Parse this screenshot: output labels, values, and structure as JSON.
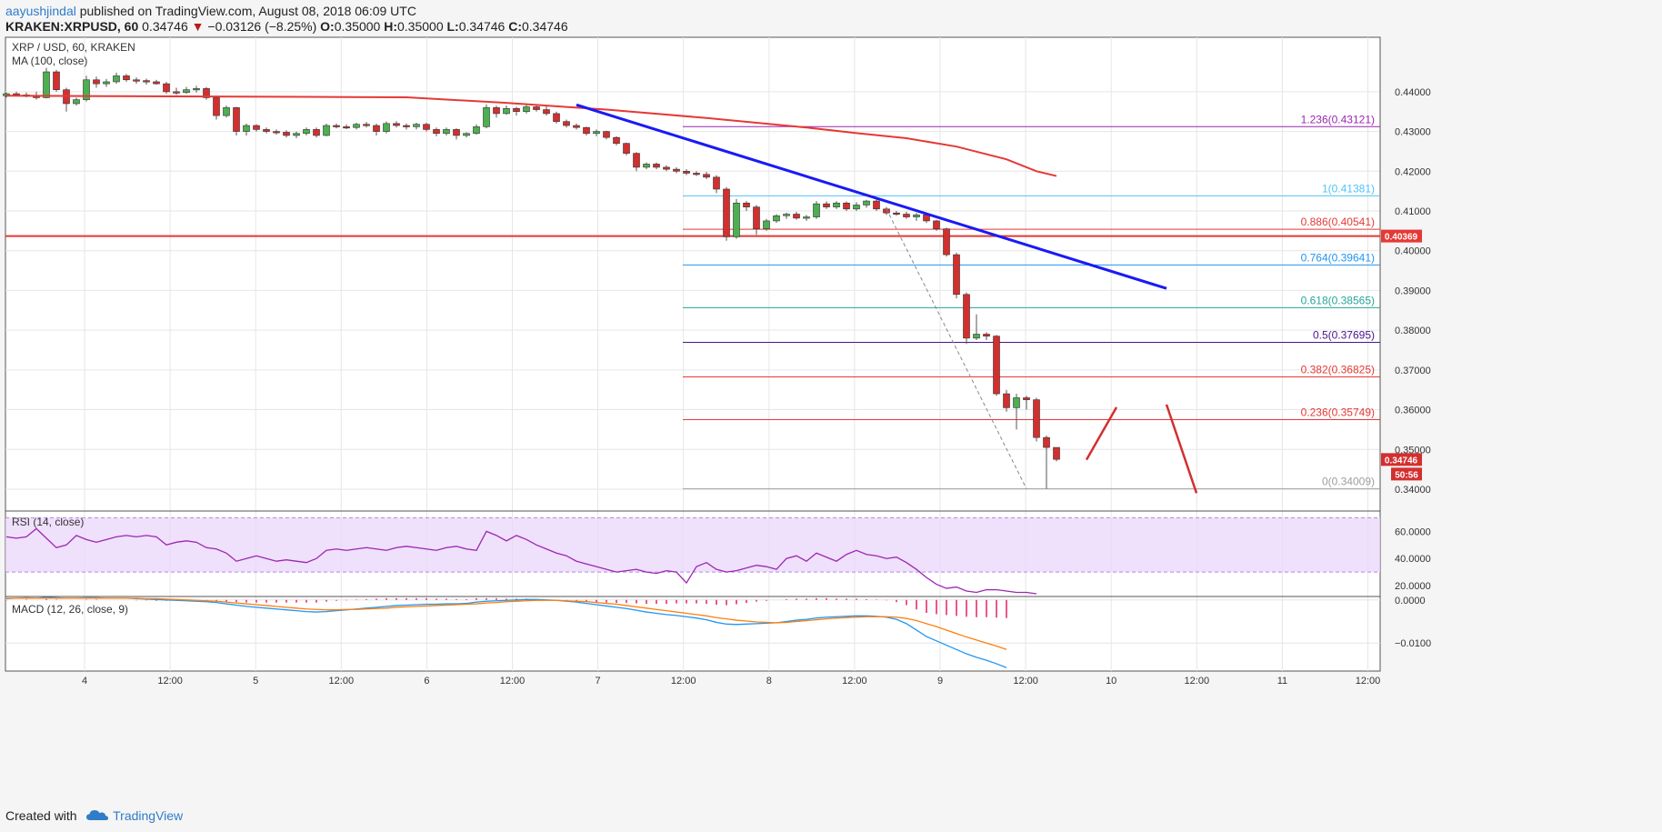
{
  "header": {
    "author": "aayushjindal",
    "published": " published on TradingView.com, August 08, 2018 06:09 UTC",
    "symbol": "KRAKEN:XRPUSD, 60",
    "last": "0.34746",
    "arrow": "▼",
    "change": "−0.03126 (−8.25%)",
    "o_label": "O:",
    "o": "0.35000",
    "h_label": "H:",
    "h": "0.35000",
    "l_label": "L:",
    "l": "0.34746",
    "c_label": "C:",
    "c": "0.34746"
  },
  "footer": {
    "created_with": "Created with",
    "brand": "TradingView"
  },
  "colors": {
    "up": "#4caf50",
    "down": "#d32f2f",
    "ma": "#e53935",
    "trendline": "#1a1af5",
    "hline": "#e53935",
    "rsi": "#9c27b0",
    "rsi_band": "#ead5fb",
    "macd": "#2196f3",
    "signal": "#ff7f0e",
    "hist": "#e91e63"
  },
  "chart_data": [
    {
      "type": "candlestick",
      "title": "XRP / USD, 60, KRAKEN",
      "indicator_label": "MA (100, close)",
      "y_ticks": [
        0.34,
        0.35,
        0.36,
        0.37,
        0.38,
        0.39,
        0.4,
        0.41,
        0.42,
        0.43,
        0.44
      ],
      "y_tick_labels": [
        "0.34000",
        "0.35000",
        "0.36000",
        "0.37000",
        "0.38000",
        "0.39000",
        "0.40000",
        "0.41000",
        "0.42000",
        "0.43000",
        "0.44000"
      ],
      "ylim": [
        0.3345,
        0.4537
      ],
      "x_tick_labels": [
        "4",
        "12:00",
        "5",
        "12:00",
        "6",
        "12:00",
        "7",
        "12:00",
        "8",
        "12:00",
        "9",
        "12:00",
        "10",
        "12:00",
        "11",
        "12:00"
      ],
      "last_price_label": "0.34746",
      "countdown_label": "50:56",
      "horizontal_line": {
        "value": 0.40369,
        "label": "0.40369"
      },
      "fibonacci": [
        {
          "ratio": "1.236",
          "value": 0.43121,
          "label": "1.236(0.43121)",
          "color": "#9c27b0"
        },
        {
          "ratio": "1",
          "value": 0.41381,
          "label": "1(0.41381)",
          "color": "#4fc3f7"
        },
        {
          "ratio": "0.886",
          "value": 0.40541,
          "label": "0.886(0.40541)",
          "color": "#e53935"
        },
        {
          "ratio": "0.764",
          "value": 0.39641,
          "label": "0.764(0.39641)",
          "color": "#2196f3"
        },
        {
          "ratio": "0.618",
          "value": 0.38565,
          "label": "0.618(0.38565)",
          "color": "#26a69a"
        },
        {
          "ratio": "0.5",
          "value": 0.37695,
          "label": "0.5(0.37695)",
          "color": "#4a148c"
        },
        {
          "ratio": "0.382",
          "value": 0.36825,
          "label": "0.382(0.36825)",
          "color": "#e53935"
        },
        {
          "ratio": "0.236",
          "value": 0.35749,
          "label": "0.236(0.35749)",
          "color": "#e53935"
        },
        {
          "ratio": "0",
          "value": 0.34009,
          "label": "0(0.34009)",
          "color": "#9e9e9e"
        }
      ],
      "candles": [
        [
          0.439,
          0.4398,
          0.4385,
          0.4395
        ],
        [
          0.4395,
          0.44,
          0.4388,
          0.4392
        ],
        [
          0.4392,
          0.4398,
          0.4386,
          0.439
        ],
        [
          0.439,
          0.44,
          0.438,
          0.4385
        ],
        [
          0.4385,
          0.446,
          0.4383,
          0.445
        ],
        [
          0.445,
          0.4455,
          0.44,
          0.4405
        ],
        [
          0.4405,
          0.441,
          0.435,
          0.437
        ],
        [
          0.437,
          0.4385,
          0.4365,
          0.438
        ],
        [
          0.438,
          0.444,
          0.4375,
          0.443
        ],
        [
          0.443,
          0.4438,
          0.441,
          0.442
        ],
        [
          0.442,
          0.4432,
          0.4412,
          0.4425
        ],
        [
          0.4425,
          0.4448,
          0.442,
          0.444
        ],
        [
          0.444,
          0.4445,
          0.4425,
          0.443
        ],
        [
          0.443,
          0.4436,
          0.442,
          0.4428
        ],
        [
          0.4428,
          0.4433,
          0.4418,
          0.4425
        ],
        [
          0.4425,
          0.443,
          0.4418,
          0.442
        ],
        [
          0.442,
          0.4425,
          0.4395,
          0.44
        ],
        [
          0.44,
          0.441,
          0.4392,
          0.4398
        ],
        [
          0.4398,
          0.4412,
          0.4395,
          0.4405
        ],
        [
          0.4405,
          0.4415,
          0.4398,
          0.4408
        ],
        [
          0.4408,
          0.4412,
          0.438,
          0.4385
        ],
        [
          0.4385,
          0.439,
          0.433,
          0.434
        ],
        [
          0.434,
          0.4365,
          0.4335,
          0.436
        ],
        [
          0.436,
          0.4362,
          0.429,
          0.43
        ],
        [
          0.43,
          0.432,
          0.429,
          0.4315
        ],
        [
          0.4315,
          0.4318,
          0.43,
          0.4305
        ],
        [
          0.4305,
          0.431,
          0.4295,
          0.43
        ],
        [
          0.43,
          0.4305,
          0.4292,
          0.4298
        ],
        [
          0.4298,
          0.4303,
          0.4285,
          0.429
        ],
        [
          0.429,
          0.43,
          0.4283,
          0.4295
        ],
        [
          0.4295,
          0.431,
          0.429,
          0.4305
        ],
        [
          0.4305,
          0.431,
          0.4285,
          0.429
        ],
        [
          0.429,
          0.432,
          0.4288,
          0.4315
        ],
        [
          0.4315,
          0.432,
          0.4308,
          0.4312
        ],
        [
          0.4312,
          0.4318,
          0.4306,
          0.431
        ],
        [
          0.431,
          0.4322,
          0.4305,
          0.4318
        ],
        [
          0.4318,
          0.4324,
          0.431,
          0.4315
        ],
        [
          0.4315,
          0.432,
          0.429,
          0.43
        ],
        [
          0.43,
          0.4325,
          0.4295,
          0.432
        ],
        [
          0.432,
          0.4326,
          0.431,
          0.4315
        ],
        [
          0.4315,
          0.432,
          0.4305,
          0.4312
        ],
        [
          0.4312,
          0.4322,
          0.4305,
          0.4318
        ],
        [
          0.4318,
          0.4322,
          0.43,
          0.4305
        ],
        [
          0.4305,
          0.431,
          0.4288,
          0.4295
        ],
        [
          0.4295,
          0.431,
          0.429,
          0.4305
        ],
        [
          0.4305,
          0.4308,
          0.428,
          0.429
        ],
        [
          0.429,
          0.4298,
          0.4285,
          0.4295
        ],
        [
          0.4295,
          0.4318,
          0.4292,
          0.4312
        ],
        [
          0.4312,
          0.4368,
          0.4308,
          0.436
        ],
        [
          0.436,
          0.4365,
          0.4335,
          0.4345
        ],
        [
          0.4345,
          0.4365,
          0.4342,
          0.4358
        ],
        [
          0.4358,
          0.4362,
          0.434,
          0.435
        ],
        [
          0.435,
          0.437,
          0.4345,
          0.4362
        ],
        [
          0.4362,
          0.4368,
          0.435,
          0.4355
        ],
        [
          0.4355,
          0.4365,
          0.434,
          0.4345
        ],
        [
          0.4345,
          0.435,
          0.432,
          0.4325
        ],
        [
          0.4325,
          0.433,
          0.431,
          0.4315
        ],
        [
          0.4315,
          0.432,
          0.4305,
          0.431
        ],
        [
          0.431,
          0.4312,
          0.429,
          0.4295
        ],
        [
          0.4295,
          0.4305,
          0.4288,
          0.43
        ],
        [
          0.43,
          0.4302,
          0.428,
          0.4285
        ],
        [
          0.4285,
          0.4288,
          0.4265,
          0.427
        ],
        [
          0.427,
          0.4272,
          0.424,
          0.4245
        ],
        [
          0.4245,
          0.4248,
          0.42,
          0.421
        ],
        [
          0.421,
          0.4222,
          0.4205,
          0.4218
        ],
        [
          0.4218,
          0.4222,
          0.4205,
          0.421
        ],
        [
          0.421,
          0.4215,
          0.42,
          0.4205
        ],
        [
          0.4205,
          0.421,
          0.4195,
          0.42
        ],
        [
          0.42,
          0.4205,
          0.419,
          0.4195
        ],
        [
          0.4195,
          0.42,
          0.4188,
          0.4192
        ],
        [
          0.4192,
          0.4198,
          0.418,
          0.4185
        ],
        [
          0.4185,
          0.419,
          0.4145,
          0.4155
        ],
        [
          0.4155,
          0.416,
          0.4025,
          0.4035
        ],
        [
          0.4035,
          0.413,
          0.403,
          0.412
        ],
        [
          0.412,
          0.4125,
          0.41,
          0.411
        ],
        [
          0.411,
          0.4115,
          0.404,
          0.4055
        ],
        [
          0.4055,
          0.408,
          0.405,
          0.4075
        ],
        [
          0.4075,
          0.4092,
          0.407,
          0.4088
        ],
        [
          0.4088,
          0.4096,
          0.408,
          0.4092
        ],
        [
          0.4092,
          0.4098,
          0.4078,
          0.4082
        ],
        [
          0.4082,
          0.409,
          0.4075,
          0.4085
        ],
        [
          0.4085,
          0.4125,
          0.408,
          0.4118
        ],
        [
          0.4118,
          0.4124,
          0.4105,
          0.411
        ],
        [
          0.411,
          0.4125,
          0.4105,
          0.412
        ],
        [
          0.412,
          0.4124,
          0.41,
          0.4105
        ],
        [
          0.4105,
          0.4122,
          0.41,
          0.4115
        ],
        [
          0.4115,
          0.4128,
          0.4108,
          0.4125
        ],
        [
          0.4125,
          0.413,
          0.41,
          0.4105
        ],
        [
          0.4105,
          0.411,
          0.409,
          0.4095
        ],
        [
          0.4095,
          0.41,
          0.4088,
          0.4092
        ],
        [
          0.4092,
          0.4098,
          0.408,
          0.4085
        ],
        [
          0.4085,
          0.4095,
          0.4075,
          0.409
        ],
        [
          0.409,
          0.4095,
          0.407,
          0.4075
        ],
        [
          0.4075,
          0.4078,
          0.405,
          0.4055
        ],
        [
          0.4055,
          0.4058,
          0.3985,
          0.399
        ],
        [
          0.399,
          0.3995,
          0.388,
          0.389
        ],
        [
          0.389,
          0.3895,
          0.3765,
          0.378
        ],
        [
          0.378,
          0.384,
          0.3775,
          0.379
        ],
        [
          0.379,
          0.3795,
          0.3775,
          0.3785
        ],
        [
          0.3785,
          0.3788,
          0.3635,
          0.364
        ],
        [
          0.364,
          0.365,
          0.3595,
          0.3605
        ],
        [
          0.3605,
          0.364,
          0.355,
          0.363
        ],
        [
          0.363,
          0.3635,
          0.36,
          0.3625
        ],
        [
          0.3625,
          0.363,
          0.352,
          0.353
        ],
        [
          0.353,
          0.3535,
          0.3401,
          0.3505
        ],
        [
          0.3505,
          0.35,
          0.347,
          0.3475
        ]
      ],
      "ma100": [
        [
          0,
          0.439
        ],
        [
          10,
          0.4389
        ],
        [
          20,
          0.4388
        ],
        [
          30,
          0.4387
        ],
        [
          40,
          0.4386
        ],
        [
          50,
          0.4372
        ],
        [
          60,
          0.4355
        ],
        [
          70,
          0.4334
        ],
        [
          80,
          0.431
        ],
        [
          85,
          0.4296
        ],
        [
          90,
          0.4283
        ],
        [
          95,
          0.4262
        ],
        [
          100,
          0.423
        ],
        [
          103,
          0.42
        ],
        [
          105,
          0.4188
        ]
      ],
      "trendline": [
        [
          57,
          0.4367
        ],
        [
          116,
          0.3905
        ]
      ],
      "projection": [
        [
          108,
          0.3474
        ],
        [
          111,
          0.3606
        ],
        [
          116,
          0.3613
        ],
        [
          119,
          0.339
        ]
      ],
      "fib_extension_line": [
        [
          88,
          0.4105
        ],
        [
          102,
          0.3401
        ]
      ]
    },
    {
      "type": "line",
      "title": "RSI (14, close)",
      "ylim": [
        12,
        75
      ],
      "y_ticks": [
        20,
        40,
        60
      ],
      "y_tick_labels": [
        "20.0000",
        "40.0000",
        "60.0000"
      ],
      "band": [
        30,
        70
      ],
      "values": [
        56,
        55,
        56,
        62,
        55,
        48,
        50,
        57,
        54,
        52,
        54,
        56,
        57,
        56,
        57,
        56,
        50,
        52,
        53,
        52,
        48,
        47,
        44,
        38,
        40,
        42,
        40,
        38,
        39,
        38,
        37,
        40,
        46,
        47,
        46,
        47,
        48,
        47,
        46,
        48,
        49,
        48,
        47,
        46,
        48,
        49,
        47,
        46,
        60,
        57,
        53,
        57,
        54,
        50,
        47,
        44,
        42,
        38,
        36,
        34,
        32,
        30,
        31,
        32,
        30,
        29,
        31,
        30,
        22,
        34,
        37,
        32,
        30,
        31,
        33,
        35,
        34,
        32,
        40,
        42,
        38,
        44,
        41,
        38,
        43,
        46,
        43,
        42,
        40,
        41,
        37,
        32,
        26,
        21,
        18,
        19,
        16,
        15,
        17,
        17,
        16,
        15,
        15,
        14
      ]
    },
    {
      "type": "line",
      "title": "MACD (12, 26, close, 9)",
      "ylim": [
        -0.0165,
        0.0008
      ],
      "y_ticks": [
        0.0,
        -0.01
      ],
      "y_tick_labels": [
        "0.0000",
        "−0.0100"
      ],
      "macd": [
        0.0003,
        0.0004,
        0.0005,
        0.0004,
        0.0006,
        0.0005,
        0.0004,
        0.0004,
        0.0005,
        0.0005,
        0.0004,
        0.0004,
        0.0004,
        0.0003,
        0.0002,
        0.0001,
        0.0,
        -0.0001,
        -0.0002,
        -0.0003,
        -0.0004,
        -0.0006,
        -0.0009,
        -0.0012,
        -0.0015,
        -0.0017,
        -0.0019,
        -0.0021,
        -0.0023,
        -0.0025,
        -0.0027,
        -0.0028,
        -0.0027,
        -0.0025,
        -0.0023,
        -0.0021,
        -0.0019,
        -0.0017,
        -0.0015,
        -0.0013,
        -0.0012,
        -0.0011,
        -0.001,
        -0.001,
        -0.0009,
        -0.0009,
        -0.0008,
        -0.0005,
        -0.0003,
        -0.0002,
        -0.0001,
        0.0,
        0.0001,
        0.0001,
        0.0,
        -0.0001,
        -0.0003,
        -0.0005,
        -0.0008,
        -0.0011,
        -0.0014,
        -0.0017,
        -0.002,
        -0.0024,
        -0.0028,
        -0.0031,
        -0.0034,
        -0.0036,
        -0.0039,
        -0.0042,
        -0.0046,
        -0.0052,
        -0.0056,
        -0.0057,
        -0.0056,
        -0.0055,
        -0.0054,
        -0.0053,
        -0.005,
        -0.0047,
        -0.0045,
        -0.0042,
        -0.004,
        -0.0039,
        -0.0038,
        -0.0037,
        -0.0037,
        -0.0038,
        -0.004,
        -0.0045,
        -0.0055,
        -0.007,
        -0.0085,
        -0.0095,
        -0.0105,
        -0.0115,
        -0.0125,
        -0.0133,
        -0.014,
        -0.0148,
        -0.0157
      ],
      "signal": [
        0.0004,
        0.0004,
        0.0004,
        0.0004,
        0.0004,
        0.0004,
        0.0004,
        0.0004,
        0.0004,
        0.0004,
        0.0004,
        0.0004,
        0.0004,
        0.0004,
        0.0003,
        0.0003,
        0.0002,
        0.0001,
        0.0,
        -0.0001,
        -0.0002,
        -0.0003,
        -0.0005,
        -0.0007,
        -0.0009,
        -0.0011,
        -0.0013,
        -0.0015,
        -0.0017,
        -0.0019,
        -0.0021,
        -0.0022,
        -0.0023,
        -0.0023,
        -0.0022,
        -0.0022,
        -0.0021,
        -0.002,
        -0.0019,
        -0.0017,
        -0.0016,
        -0.0015,
        -0.0014,
        -0.0013,
        -0.0012,
        -0.0011,
        -0.001,
        -0.0009,
        -0.0007,
        -0.0006,
        -0.0004,
        -0.0003,
        -0.0002,
        -0.0001,
        -0.0001,
        -0.0001,
        -0.0002,
        -0.0003,
        -0.0004,
        -0.0006,
        -0.0008,
        -0.001,
        -0.0013,
        -0.0016,
        -0.0019,
        -0.0022,
        -0.0025,
        -0.0028,
        -0.0031,
        -0.0034,
        -0.0037,
        -0.0041,
        -0.0044,
        -0.0047,
        -0.0049,
        -0.0051,
        -0.0052,
        -0.0053,
        -0.0052,
        -0.005,
        -0.0048,
        -0.0046,
        -0.0044,
        -0.0042,
        -0.0041,
        -0.004,
        -0.0039,
        -0.0039,
        -0.0039,
        -0.004,
        -0.0043,
        -0.0048,
        -0.0055,
        -0.0062,
        -0.007,
        -0.0078,
        -0.0086,
        -0.0093,
        -0.01,
        -0.0107,
        -0.0115
      ]
    }
  ]
}
